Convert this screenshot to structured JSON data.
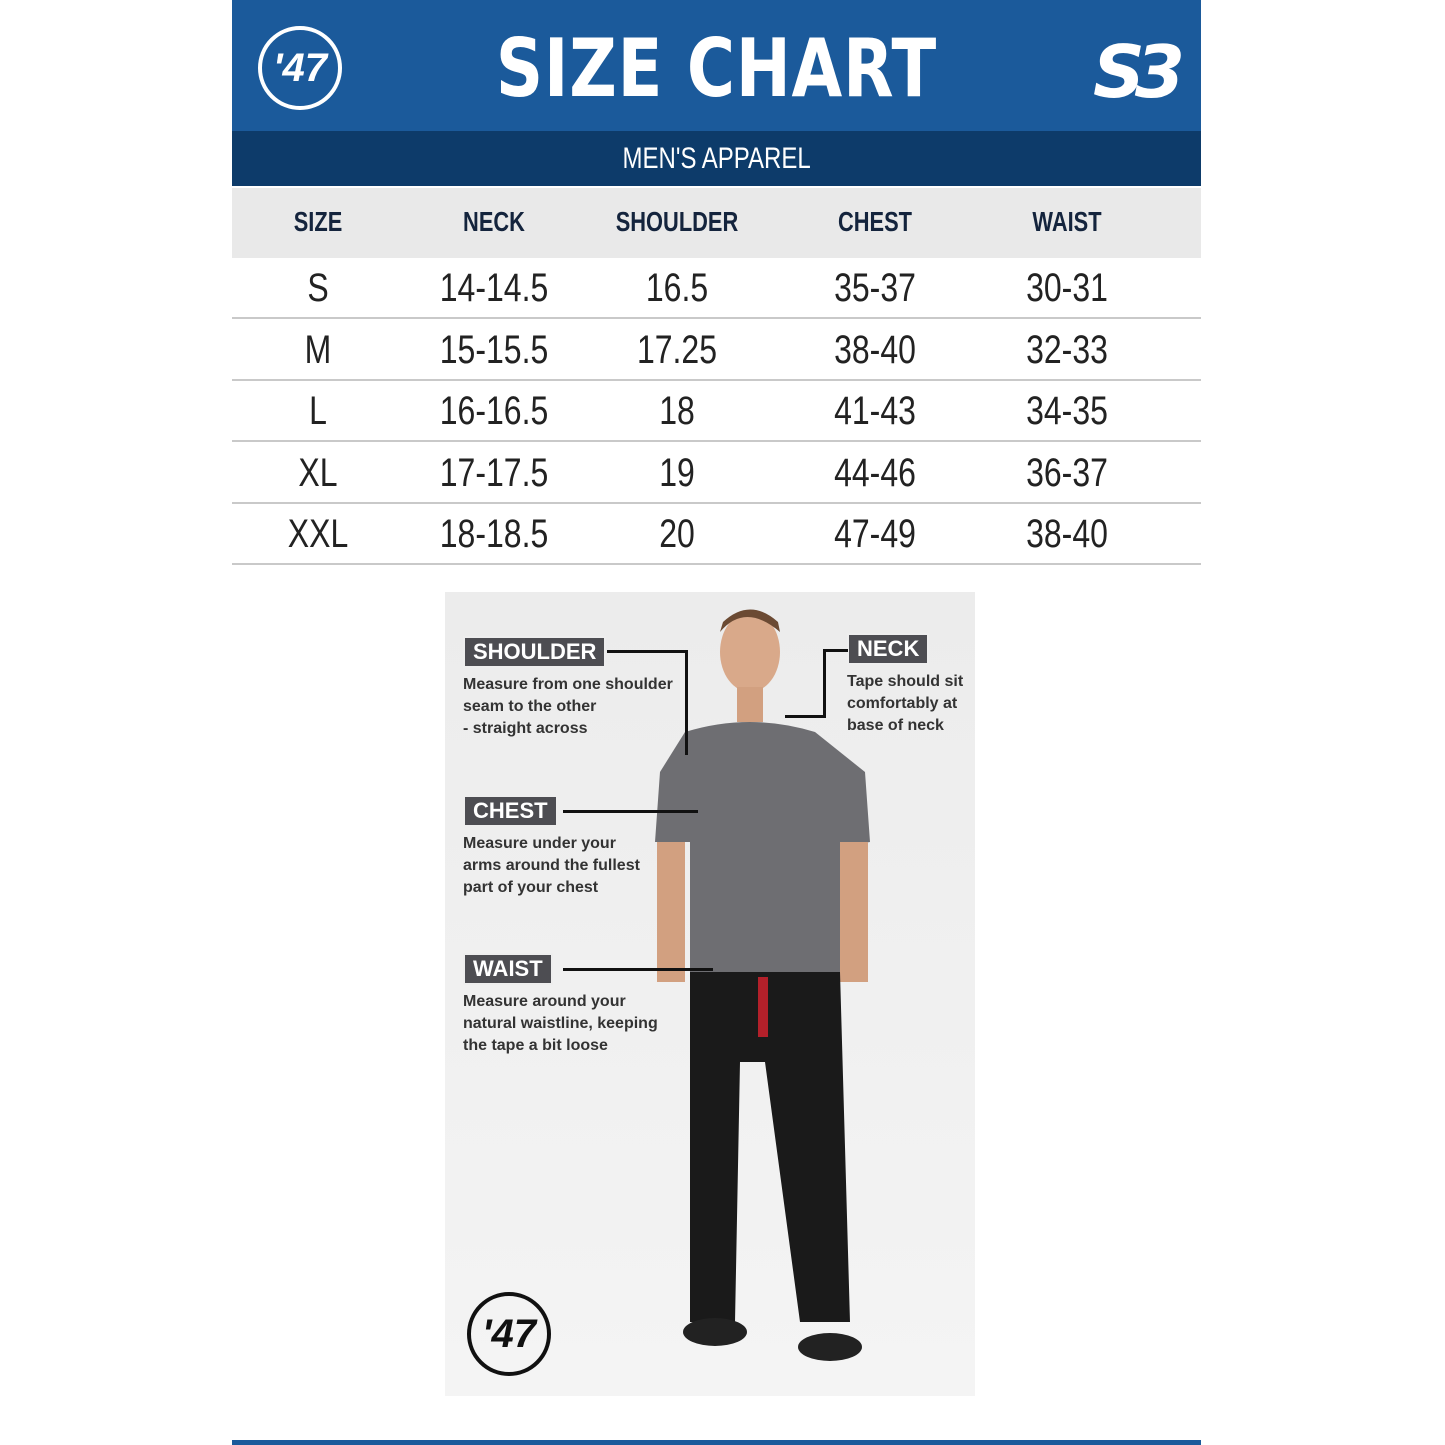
{
  "header": {
    "title": "SIZE CHART",
    "subtitle": "MEN'S APPAREL",
    "logo_left": "'47",
    "logo_right": "S3",
    "brand_color": "#1b5a9b",
    "band_color": "#0d3b6a"
  },
  "table": {
    "columns": [
      "SIZE",
      "NECK",
      "SHOULDER",
      "CHEST",
      "WAIST"
    ],
    "rows": [
      [
        "S",
        "14-14.5",
        "16.5",
        "35-37",
        "30-31"
      ],
      [
        "M",
        "15-15.5",
        "17.25",
        "38-40",
        "32-33"
      ],
      [
        "L",
        "16-16.5",
        "18",
        "41-43",
        "34-35"
      ],
      [
        "XL",
        "17-17.5",
        "19",
        "44-46",
        "36-37"
      ],
      [
        "XXL",
        "18-18.5",
        "20",
        "47-49",
        "38-40"
      ]
    ]
  },
  "guide": {
    "shoulder": {
      "label": "SHOULDER",
      "text": "Measure from one shoulder\nseam to the other\n- straight across"
    },
    "neck": {
      "label": "NECK",
      "text": "Tape should sit\ncomfortably at\nbase of neck"
    },
    "chest": {
      "label": "CHEST",
      "text": "Measure under your\narms around the fullest\npart of your chest"
    },
    "waist": {
      "label": "WAIST",
      "text": "Measure around your\nnatural waistline, keeping\nthe tape a bit loose"
    },
    "logo": "'47"
  }
}
